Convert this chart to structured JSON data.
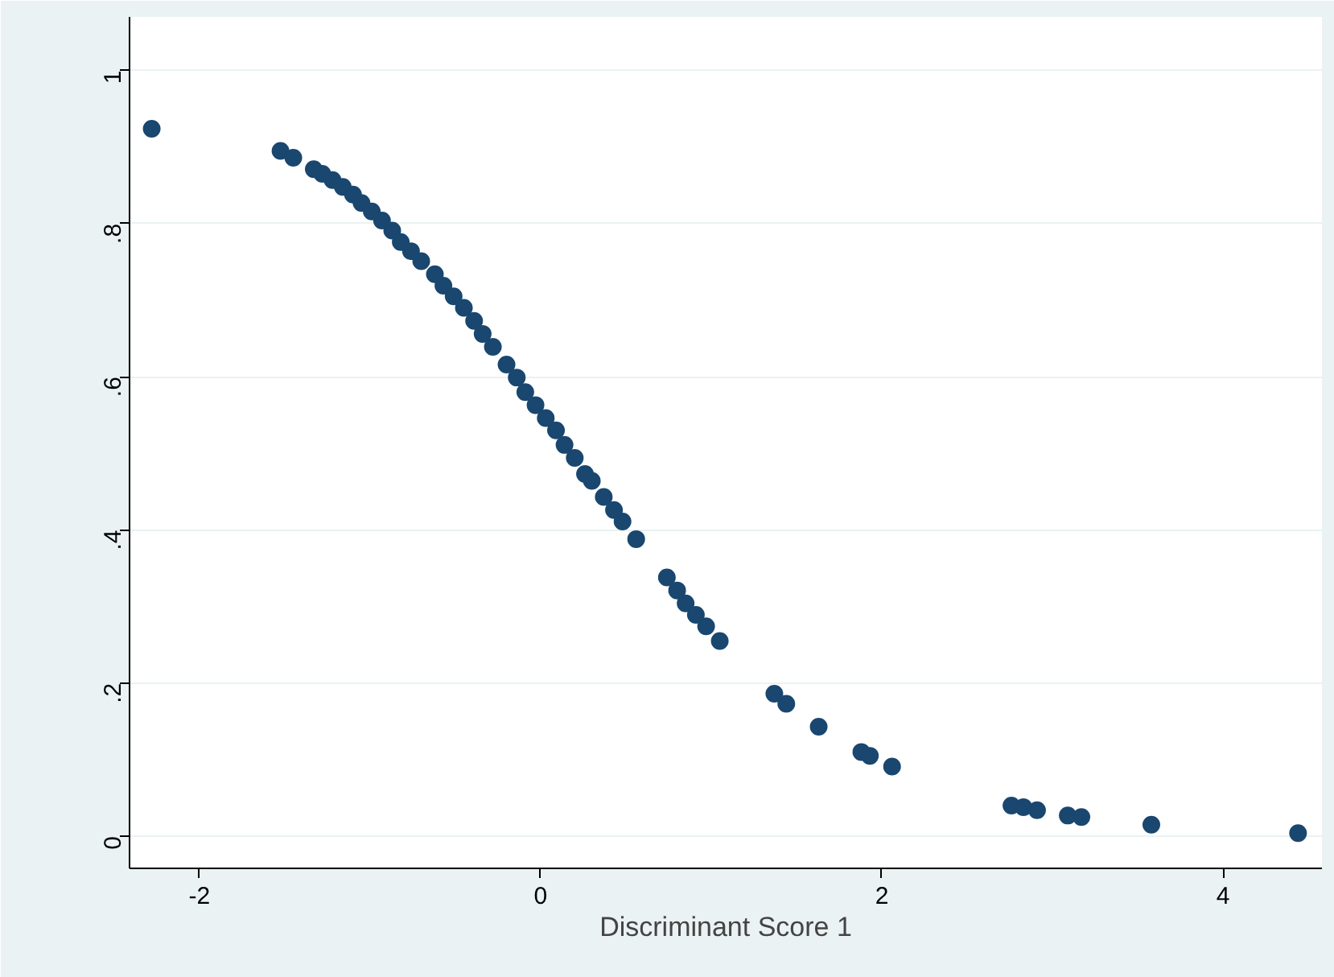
{
  "chart_data": {
    "type": "scatter",
    "xlabel": "Discriminant Score 1",
    "x": [
      -2.28,
      -1.525,
      -1.45,
      -1.33,
      -1.28,
      -1.22,
      -1.16,
      -1.1,
      -1.05,
      -0.99,
      -0.93,
      -0.87,
      -0.82,
      -0.76,
      -0.7,
      -0.62,
      -0.57,
      -0.51,
      -0.45,
      -0.39,
      -0.34,
      -0.28,
      -0.2,
      -0.14,
      -0.09,
      -0.03,
      0.03,
      0.09,
      0.14,
      0.2,
      0.26,
      0.3,
      0.37,
      0.43,
      0.48,
      0.56,
      0.74,
      0.8,
      0.85,
      0.91,
      0.97,
      1.03,
      1.05,
      1.37,
      1.44,
      1.63,
      1.88,
      1.93,
      2.06,
      2.76,
      2.83,
      2.91,
      3.09,
      3.17,
      3.58,
      4.44
    ],
    "series": [
      {
        "color": "#1a476f",
        "values": [
          0.924,
          0.895,
          0.886,
          0.871,
          0.865,
          0.857,
          0.848,
          0.838,
          0.827,
          0.816,
          0.804,
          0.791,
          0.776,
          0.764,
          0.751,
          0.734,
          0.719,
          0.705,
          0.69,
          0.673,
          0.656,
          0.639,
          0.616,
          0.599,
          0.58,
          0.563,
          0.546,
          0.53,
          0.511,
          0.494,
          0.473,
          0.464,
          0.443,
          0.426,
          0.411,
          0.388,
          0.338,
          0.321,
          0.304,
          0.289,
          0.274,
          null,
          0.255,
          0.186,
          0.173,
          0.143,
          0.11,
          0.105,
          0.091,
          0.04,
          0.038,
          0.034,
          0.027,
          0.025,
          0.015,
          0.004
        ]
      }
    ],
    "xlim": [
      -2.41,
      4.58
    ],
    "ylim": [
      -0.042,
      1.07
    ],
    "xticks": [
      -2,
      0,
      2,
      4
    ],
    "yticks": [
      0,
      {
        "value": 0.2,
        "label": ".2"
      },
      {
        "value": 0.4,
        "label": ".4"
      },
      {
        "value": 0.6,
        "label": ".6"
      },
      {
        "value": 0.8,
        "label": ".8"
      },
      1
    ],
    "grid": "y",
    "marker": "circle"
  }
}
